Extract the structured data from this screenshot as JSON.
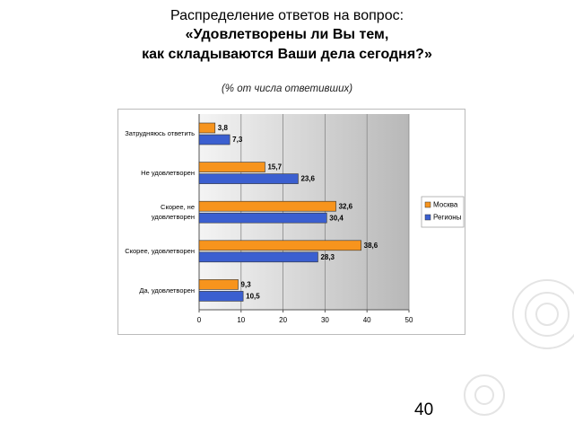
{
  "slide": {
    "page_number": "40"
  },
  "chart_data": {
    "type": "hbar",
    "title_lines": [
      "Распределение ответов на вопрос:",
      "«Удовлетворены ли Вы тем,",
      "как складываются Ваши дела сегодня?»"
    ],
    "subtitle": "(% от числа ответивших)",
    "categories": [
      "Затрудняюсь ответить",
      "Не удовлетворен",
      "Скорее, не удовлетворен",
      "Скорее, удовлетворен",
      "Да, удовлетворен"
    ],
    "series": [
      {
        "name": "Москва",
        "color": "#f7941d",
        "values": [
          3.8,
          15.7,
          32.6,
          38.6,
          9.3
        ],
        "value_labels": [
          "3,8",
          "15,7",
          "32,6",
          "38,6",
          "9,3"
        ]
      },
      {
        "name": "Регионы",
        "color": "#3b5fd0",
        "values": [
          7.3,
          23.6,
          30.4,
          28.3,
          10.5
        ],
        "value_labels": [
          "7,3",
          "23,6",
          "30,4",
          "28,3",
          "10,5"
        ]
      }
    ],
    "xlim": [
      0,
      50
    ],
    "xticks": [
      0,
      10,
      20,
      30,
      40,
      50
    ],
    "grid": true,
    "legend": "right"
  }
}
